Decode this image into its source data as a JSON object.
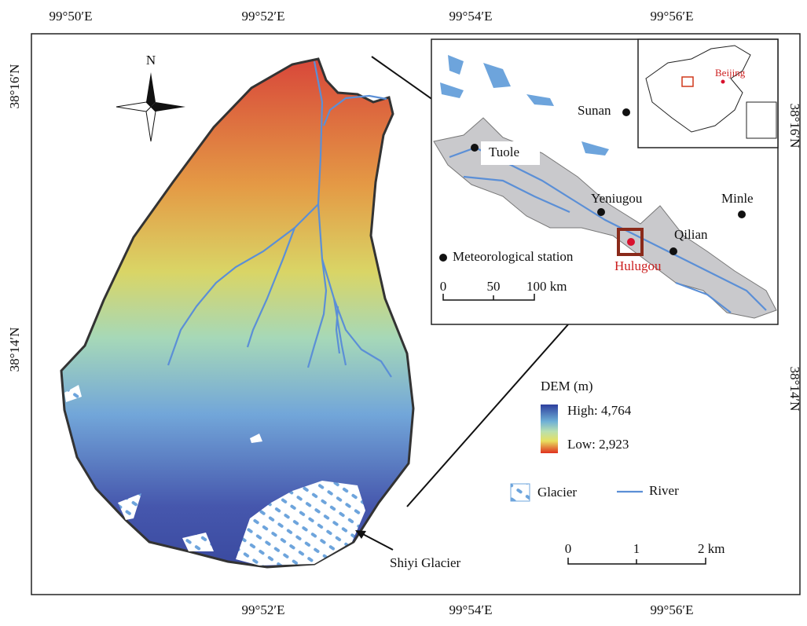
{
  "axes": {
    "top": [
      "99°50′E",
      "99°52′E",
      "99°54′E",
      "99°56′E"
    ],
    "bottom": [
      "99°52′E",
      "99°54′E",
      "99°56′E"
    ],
    "left": [
      "38°16′N",
      "38°14′N"
    ],
    "right": [
      "38°16′N",
      "38°14′N"
    ]
  },
  "north_arrow": "N",
  "inset": {
    "places": {
      "tuole": "Tuole",
      "sunan": "Sunan",
      "yeniugou": "Yeniugou",
      "minle": "Minle",
      "qilian": "Qilian",
      "hulugou": "Hulugou"
    },
    "station_legend": "Meteorological station",
    "scale": [
      "0",
      "50",
      "100 km"
    ],
    "china": {
      "capital": "Beijing"
    }
  },
  "legend": {
    "dem_title": "DEM (m)",
    "high": "High: 4,764",
    "low": "Low: 2,923",
    "glacier": "Glacier",
    "river": "River"
  },
  "scale_bar": [
    "0",
    "1",
    "2 km"
  ],
  "annotation": "Shiyi Glacier"
}
